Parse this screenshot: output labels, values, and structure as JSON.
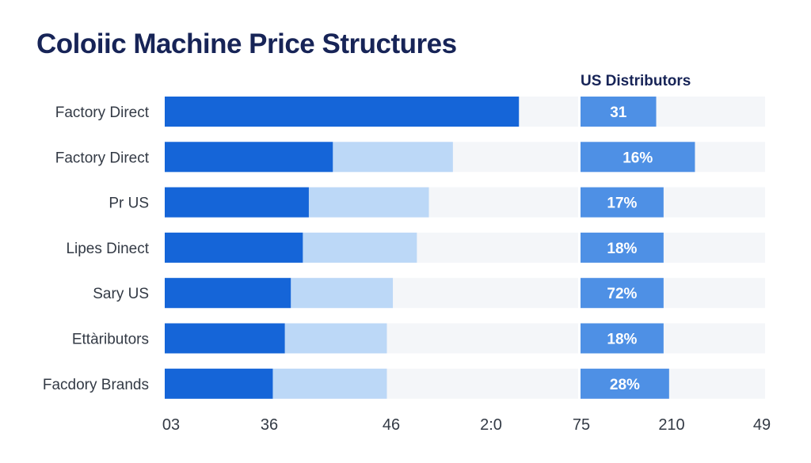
{
  "chart_data": {
    "type": "bar",
    "title": "Coloiic Machine Price Structures",
    "right_panel_title": "US Distributors",
    "categories": [
      "Factory Direct",
      "Factory Direct",
      "Pr US",
      "Lipes Dinect",
      "Sary US",
      "Ettàributors",
      "Facdory Brands"
    ],
    "series": [
      {
        "values": [
          0.59,
          0.28,
          0.24,
          0.23,
          0.21,
          0.2,
          0.18
        ]
      },
      {
        "values": [
          0.59,
          0.48,
          0.44,
          0.42,
          0.38,
          0.37,
          0.37
        ]
      }
    ],
    "right_labels": [
      "31",
      "16%",
      "17%",
      "18%",
      "72%",
      "18%",
      "28%"
    ],
    "right_fill": [
      0.41,
      0.62,
      0.45,
      0.45,
      0.45,
      0.45,
      0.48
    ],
    "x_ticks": [
      "03",
      "36",
      "46",
      "2:0",
      "75",
      "210",
      "49"
    ],
    "colors": {
      "primary": "#1565D8",
      "secondary": "#BCD8F7",
      "track": "#F4F6F9",
      "right": "#4E90E5",
      "title": "#172457"
    }
  }
}
